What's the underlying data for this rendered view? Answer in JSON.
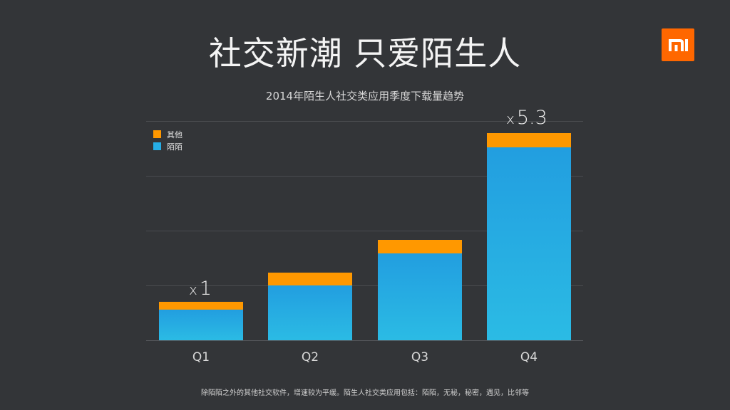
{
  "slide": {
    "title": "社交新潮 只爱陌生人",
    "footnote": "除陌陌之外的其他社交软件，增速较为平缓。陌生人社交类应用包括：陌陌，无秘，秘密，遇见，比邻等",
    "logo": "mi-logo-icon",
    "colors": {
      "background": "#333538",
      "logo": "#ff6700",
      "other": "#ff9800",
      "momo": "#229ee0"
    }
  },
  "chart_data": {
    "type": "bar",
    "stacked": true,
    "title": "2014年陌生人社交类应用季度下载量趋势",
    "xlabel": "",
    "ylabel": "",
    "categories": [
      "Q1",
      "Q2",
      "Q3",
      "Q4"
    ],
    "series": [
      {
        "name": "陌陌",
        "color": "#229ee0",
        "values": [
          0.56,
          1.0,
          1.58,
          3.52
        ]
      },
      {
        "name": "其他",
        "color": "#ff9800",
        "values": [
          0.14,
          0.23,
          0.25,
          0.26
        ]
      }
    ],
    "totals": [
      0.7,
      1.23,
      1.83,
      3.78
    ],
    "ylim": [
      0,
      4
    ],
    "grid": true,
    "legend": {
      "position": "top-left",
      "entries": [
        "其他",
        "陌陌"
      ]
    },
    "annotations": [
      {
        "category": "Q1",
        "prefix": "x",
        "text": "1"
      },
      {
        "category": "Q4",
        "prefix": "x",
        "text": "5.3"
      }
    ]
  }
}
